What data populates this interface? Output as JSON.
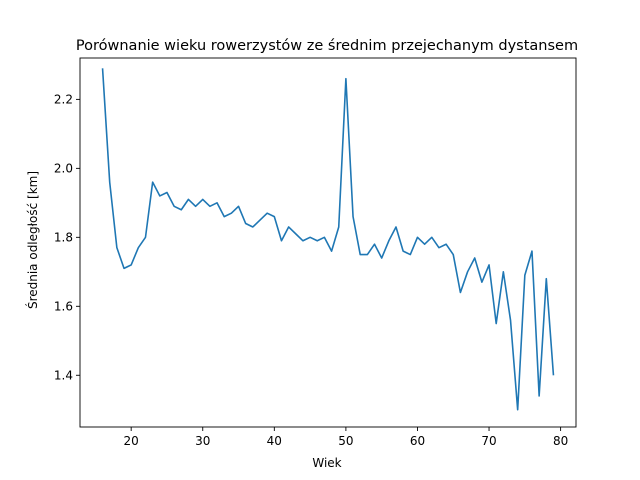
{
  "chart_data": {
    "type": "line",
    "title": "Porównanie wieku rowerzystów ze średnim przejechanym dystansem",
    "xlabel": "Wiek",
    "ylabel": "Średnia odległość [km]",
    "xlim": [
      12.85,
      82.15
    ],
    "ylim": [
      1.25,
      2.32
    ],
    "xticks": [
      20,
      30,
      40,
      50,
      60,
      70,
      80
    ],
    "yticks": [
      1.4,
      1.6,
      1.8,
      2.0,
      2.2
    ],
    "ytick_labels": [
      "1.4",
      "1.6",
      "1.8",
      "2.0",
      "2.2"
    ],
    "grid": false,
    "series": [
      {
        "color": "#1f77b4",
        "x": [
          16,
          17,
          18,
          19,
          20,
          21,
          22,
          23,
          24,
          25,
          26,
          27,
          28,
          29,
          30,
          31,
          32,
          33,
          34,
          35,
          36,
          37,
          38,
          39,
          40,
          41,
          42,
          43,
          44,
          45,
          46,
          47,
          48,
          49,
          50,
          51,
          52,
          53,
          54,
          55,
          56,
          57,
          58,
          59,
          60,
          61,
          62,
          63,
          64,
          65,
          66,
          67,
          68,
          69,
          70,
          71,
          72,
          73,
          74,
          75,
          76,
          77,
          78,
          79
        ],
        "y": [
          2.29,
          1.96,
          1.77,
          1.71,
          1.72,
          1.77,
          1.8,
          1.96,
          1.92,
          1.93,
          1.89,
          1.88,
          1.91,
          1.89,
          1.91,
          1.89,
          1.9,
          1.86,
          1.87,
          1.89,
          1.84,
          1.83,
          1.85,
          1.87,
          1.86,
          1.79,
          1.83,
          1.81,
          1.79,
          1.8,
          1.79,
          1.8,
          1.76,
          1.83,
          2.26,
          1.86,
          1.75,
          1.75,
          1.78,
          1.74,
          1.79,
          1.83,
          1.76,
          1.75,
          1.8,
          1.78,
          1.8,
          1.77,
          1.78,
          1.75,
          1.64,
          1.7,
          1.74,
          1.67,
          1.72,
          1.55,
          1.7,
          1.56,
          1.3,
          1.69,
          1.76,
          1.34,
          1.68,
          1.4
        ]
      }
    ]
  }
}
